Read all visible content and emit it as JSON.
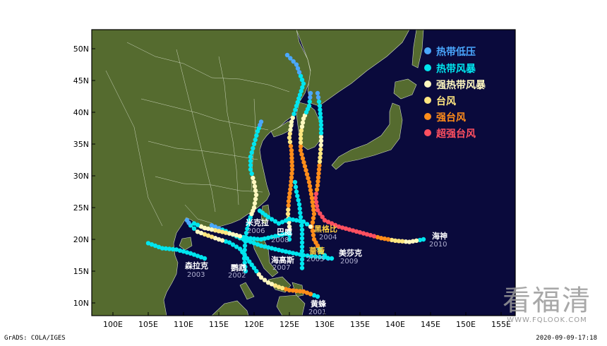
{
  "map": {
    "ocean_color": "#0a0a3c",
    "land_color": "#556b2f",
    "border_color": "#ffffff",
    "x_ticks": [
      "100E",
      "105E",
      "110E",
      "115E",
      "120E",
      "125E",
      "130E",
      "135E",
      "140E",
      "145E",
      "150E",
      "155E"
    ],
    "y_ticks": [
      "10N",
      "15N",
      "20N",
      "25N",
      "30N",
      "35N",
      "40N",
      "45N",
      "50N"
    ],
    "lon_range": [
      97,
      157
    ],
    "lat_range": [
      8,
      53
    ]
  },
  "legend": [
    {
      "label": "热带低压",
      "color": "#4aa8ff"
    },
    {
      "label": "热带风暴",
      "color": "#00e5ee"
    },
    {
      "label": "强热带风暴",
      "color": "#fff8c0"
    },
    {
      "label": "台风",
      "color": "#ffe680"
    },
    {
      "label": "强台风",
      "color": "#ff8c1a"
    },
    {
      "label": "超强台风",
      "color": "#ff5060"
    }
  ],
  "storms": [
    {
      "name": "森拉克",
      "year": "2003"
    },
    {
      "name": "鹦鹉",
      "year": "2002"
    },
    {
      "name": "海高斯",
      "year": "2007"
    },
    {
      "name": "黄蜂",
      "year": "2001"
    },
    {
      "name": "米克拉",
      "year": "2006"
    },
    {
      "name": "巴威",
      "year": "2008"
    },
    {
      "name": "蔷薇",
      "year": "2005"
    },
    {
      "name": "黑格比",
      "year": "2004"
    },
    {
      "name": "美莎克",
      "year": "2009"
    },
    {
      "name": "海神",
      "year": "2010"
    }
  ],
  "footer": {
    "left": "GrADS: COLA/IGES",
    "right": "2020-09-09-17:18"
  },
  "watermark": {
    "big": "看福清",
    "small": "WWW.FQLOOK.COM"
  }
}
